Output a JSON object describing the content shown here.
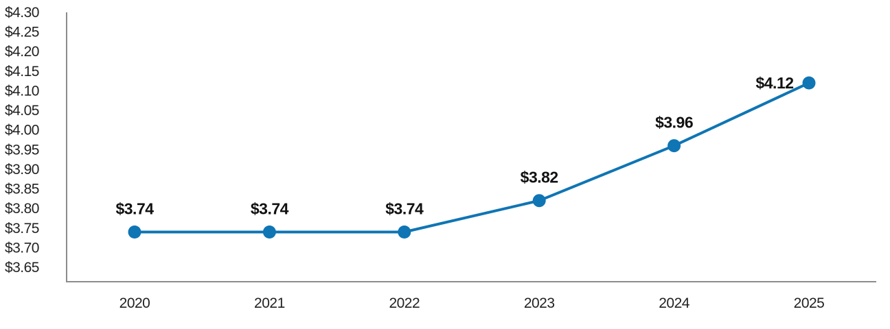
{
  "chart_data": {
    "type": "line",
    "title": "",
    "xlabel": "",
    "ylabel": "",
    "categories": [
      "2020",
      "2021",
      "2022",
      "2023",
      "2024",
      "2025"
    ],
    "series": [
      {
        "values": [
          3.74,
          3.74,
          3.74,
          3.82,
          3.96,
          4.12
        ],
        "data_labels": [
          "$3.74",
          "$3.74",
          "$3.74",
          "$3.82",
          "$3.96",
          "$4.12"
        ]
      }
    ],
    "ylim": [
      3.65,
      4.3
    ],
    "y_ticks": [
      3.65,
      3.7,
      3.75,
      3.8,
      3.85,
      3.9,
      3.95,
      4.0,
      4.05,
      4.1,
      4.15,
      4.2,
      4.25,
      4.3
    ],
    "y_tick_labels": [
      "$3.65",
      "$3.70",
      "$3.75",
      "$3.80",
      "$3.85",
      "$3.90",
      "$3.95",
      "$4.00",
      "$4.05",
      "$4.10",
      "$4.15",
      "$4.20",
      "$4.25",
      "$4.30"
    ],
    "grid": false,
    "legend": "none",
    "colors": {
      "series": "#0f75b4",
      "axis": "#8c8c8c"
    }
  }
}
